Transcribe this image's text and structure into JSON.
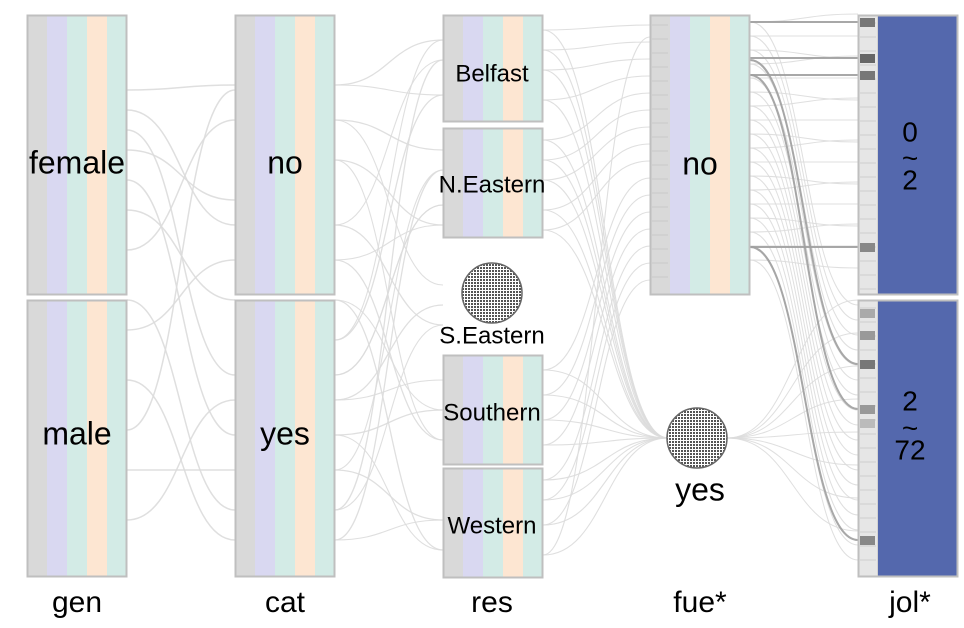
{
  "axes": [
    {
      "id": "gen",
      "label": "gen",
      "categories": [
        {
          "id": "female",
          "text": [
            "female"
          ]
        },
        {
          "id": "male",
          "text": [
            "male"
          ]
        }
      ]
    },
    {
      "id": "cat",
      "label": "cat",
      "categories": [
        {
          "id": "no",
          "text": [
            "no"
          ]
        },
        {
          "id": "yes",
          "text": [
            "yes"
          ]
        }
      ]
    },
    {
      "id": "res",
      "label": "res",
      "categories": [
        {
          "id": "belfast",
          "text": [
            "Belfast"
          ]
        },
        {
          "id": "n-eastern",
          "text": [
            "N.Eastern"
          ]
        },
        {
          "id": "s-eastern",
          "text": [
            "S.Eastern"
          ],
          "empty": true
        },
        {
          "id": "southern",
          "text": [
            "Southern"
          ]
        },
        {
          "id": "western",
          "text": [
            "Western"
          ]
        }
      ]
    },
    {
      "id": "fue",
      "label": "fue*",
      "categories": [
        {
          "id": "no",
          "text": [
            "no"
          ]
        },
        {
          "id": "yes",
          "text": [
            "yes"
          ],
          "empty": true
        }
      ]
    },
    {
      "id": "jol",
      "label": "jol*",
      "categories": [
        {
          "id": "0-2",
          "text": [
            "0",
            "~",
            "2"
          ]
        },
        {
          "id": "2-72",
          "text": [
            "2",
            "~",
            "72"
          ]
        }
      ]
    }
  ],
  "colors": {
    "stripe_gray": "#d9d9d9",
    "stripe_lavender": "#d9d8f1",
    "stripe_mint": "#d3ebe6",
    "stripe_peach": "#fde6d2",
    "box_border": "#bfbfbf",
    "ribbon": "#dcdcdc",
    "ribbon_dark": "#9e9e9e",
    "jol_fill": "#5468ad",
    "marker": "#777777"
  }
}
